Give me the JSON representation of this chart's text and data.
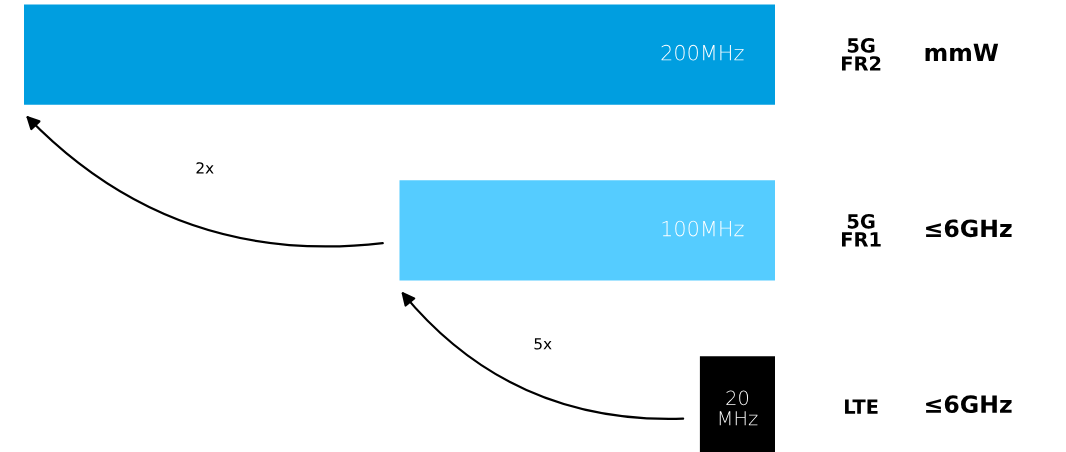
{
  "chart_data": {
    "type": "bar",
    "orientation": "horizontal",
    "categories": [
      "5G\nFR2",
      "5G\nFR1",
      "LTE"
    ],
    "values": [
      200,
      100,
      20
    ],
    "colors": [
      "#009ee0",
      "#55ccff",
      "#000000"
    ],
    "value_labels": [
      "200MHz",
      "100MHz",
      "20\nMHz"
    ],
    "xlim": [
      200,
      0
    ],
    "tick_labels": "y",
    "annotations": [
      "mmW",
      "≤6GHz",
      "≤6GHz",
      "2x",
      "5x"
    ]
  }
}
